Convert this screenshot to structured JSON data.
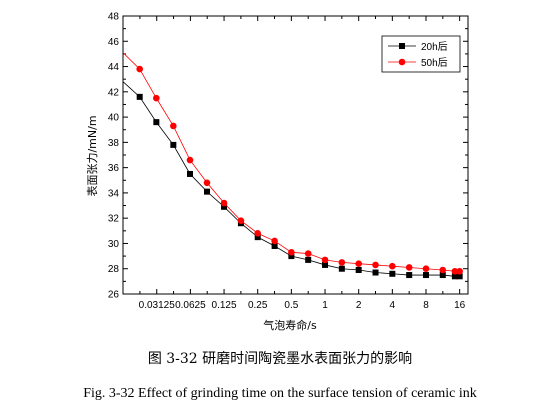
{
  "chart_data": {
    "type": "line",
    "xlabel": "气泡寿命/s",
    "ylabel": "表面张力/mN/m",
    "x_scale": "log2",
    "xlim": [
      0.0156,
      19
    ],
    "ylim": [
      26,
      48
    ],
    "x_ticks": [
      {
        "value": 0.03125,
        "label": "0.03125"
      },
      {
        "value": 0.0625,
        "label": "0.0625"
      },
      {
        "value": 0.125,
        "label": "0.125"
      },
      {
        "value": 0.25,
        "label": "0.25"
      },
      {
        "value": 0.5,
        "label": "0.5"
      },
      {
        "value": 1,
        "label": "1"
      },
      {
        "value": 2,
        "label": "2"
      },
      {
        "value": 4,
        "label": "4"
      },
      {
        "value": 8,
        "label": "8"
      },
      {
        "value": 16,
        "label": "16"
      }
    ],
    "y_ticks": [
      26,
      28,
      30,
      32,
      34,
      36,
      38,
      40,
      42,
      44,
      46,
      48
    ],
    "grid": false,
    "legend_position": "top-right",
    "series": [
      {
        "name": "20h后",
        "color": "#000000",
        "marker": "square",
        "x": [
          0.022,
          0.031,
          0.044,
          0.062,
          0.088,
          0.125,
          0.177,
          0.25,
          0.354,
          0.5,
          0.707,
          1.0,
          1.414,
          2.0,
          2.83,
          4.0,
          5.66,
          8.0,
          11.3,
          14.5,
          16.0
        ],
        "values": [
          41.6,
          39.6,
          37.8,
          35.5,
          34.1,
          32.9,
          31.6,
          30.5,
          29.8,
          29.0,
          28.7,
          28.3,
          28.0,
          27.9,
          27.7,
          27.6,
          27.5,
          27.5,
          27.5,
          27.4,
          27.4
        ],
        "y_start": 42.8
      },
      {
        "name": "50h后",
        "color": "#ff0000",
        "marker": "circle",
        "x": [
          0.022,
          0.031,
          0.044,
          0.062,
          0.088,
          0.125,
          0.177,
          0.25,
          0.354,
          0.5,
          0.707,
          1.0,
          1.414,
          2.0,
          2.83,
          4.0,
          5.66,
          8.0,
          11.3,
          14.5,
          16.0
        ],
        "values": [
          43.8,
          41.5,
          39.3,
          36.6,
          34.8,
          33.2,
          31.8,
          30.8,
          30.2,
          29.3,
          29.2,
          28.7,
          28.5,
          28.4,
          28.3,
          28.2,
          28.1,
          28.0,
          27.9,
          27.8,
          27.8
        ],
        "y_start": 45.1
      }
    ]
  },
  "caption": {
    "cn": "图 3-32  研磨时间陶瓷墨水表面张力的影响",
    "en": "Fig. 3-32    Effect of grinding time on the surface tension of ceramic ink"
  }
}
